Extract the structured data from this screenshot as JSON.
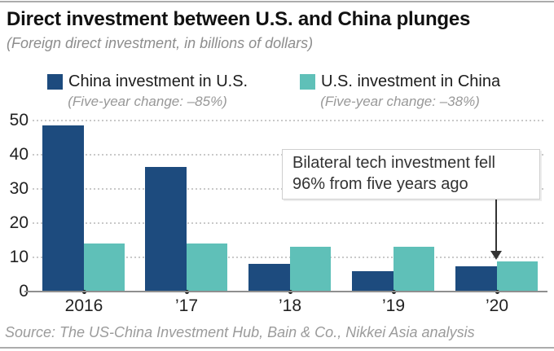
{
  "header": {
    "title": "Direct investment between U.S. and China plunges",
    "subtitle": "(Foreign direct investment, in billions of dollars)"
  },
  "legend": [
    {
      "label": "China investment in U.S.",
      "sublabel": "(Five-year change: –85%)",
      "color": "#1d4b7e"
    },
    {
      "label": "U.S. investment in China",
      "sublabel": "(Five-year change: –38%)",
      "color": "#5fc0b8"
    }
  ],
  "annotation": {
    "line1": "Bilateral tech investment fell",
    "line2": "96% from five years ago"
  },
  "footer": {
    "source": "Source: The US-China Investment Hub, Bain & Co., Nikkei Asia analysis"
  },
  "chart_data": {
    "type": "bar",
    "title": "Direct investment between U.S. and China plunges",
    "subtitle": "(Foreign direct investment, in billions of dollars)",
    "categories": [
      "2016",
      "’17",
      "’18",
      "’19",
      "’20"
    ],
    "series": [
      {
        "name": "China investment in U.S.",
        "color": "#1d4b7e",
        "five_year_change": "-85%",
        "values": [
          48.5,
          36.5,
          8,
          6,
          7.3
        ]
      },
      {
        "name": "U.S. investment in China",
        "color": "#5fc0b8",
        "five_year_change": "-38%",
        "values": [
          14,
          14,
          13,
          13,
          8.7
        ]
      }
    ],
    "ylabel": "billions of dollars",
    "ylim": [
      0,
      50
    ],
    "yticks": [
      0,
      10,
      20,
      30,
      40,
      50
    ],
    "grid": "horizontal-dotted",
    "legend_position": "top",
    "annotation": {
      "text": "Bilateral tech investment fell 96% from five years ago",
      "target_category": "’20",
      "target_series": "U.S. investment in China"
    }
  }
}
